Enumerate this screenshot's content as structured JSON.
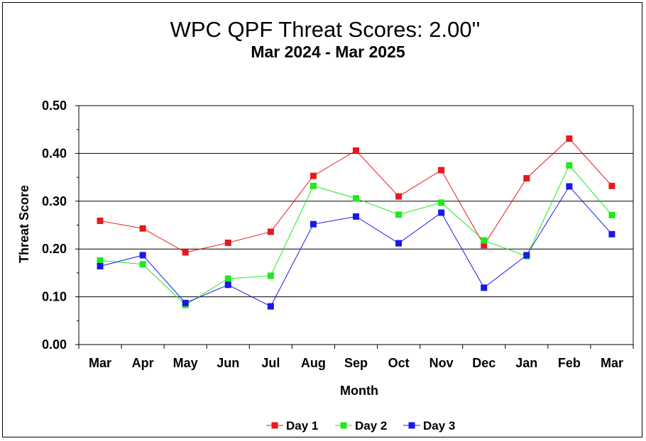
{
  "chart_data": {
    "type": "line",
    "title": "WPC QPF Threat Scores:  2.00''",
    "subtitle": "Mar 2024 - Mar 2025",
    "xlabel": "Month",
    "ylabel": "Threat Score",
    "ylim": [
      0,
      0.5
    ],
    "yticks": [
      "0.00",
      "0.10",
      "0.20",
      "0.30",
      "0.40",
      "0.50"
    ],
    "grid": true,
    "legend_position": "bottom",
    "categories": [
      "Mar",
      "Apr",
      "May",
      "Jun",
      "Jul",
      "Aug",
      "Sep",
      "Oct",
      "Nov",
      "Dec",
      "Jan",
      "Feb",
      "Mar"
    ],
    "series": [
      {
        "name": "Day 1",
        "color": "#e8191c",
        "values": [
          0.259,
          0.243,
          0.193,
          0.213,
          0.236,
          0.353,
          0.406,
          0.31,
          0.365,
          0.208,
          0.348,
          0.431,
          0.332
        ]
      },
      {
        "name": "Day 2",
        "color": "#1ee81e",
        "values": [
          0.176,
          0.168,
          0.083,
          0.138,
          0.144,
          0.332,
          0.306,
          0.272,
          0.297,
          0.218,
          0.185,
          0.375,
          0.271
        ]
      },
      {
        "name": "Day 3",
        "color": "#1818e8",
        "values": [
          0.164,
          0.187,
          0.087,
          0.125,
          0.08,
          0.252,
          0.268,
          0.212,
          0.276,
          0.119,
          0.187,
          0.331,
          0.231
        ]
      }
    ]
  }
}
